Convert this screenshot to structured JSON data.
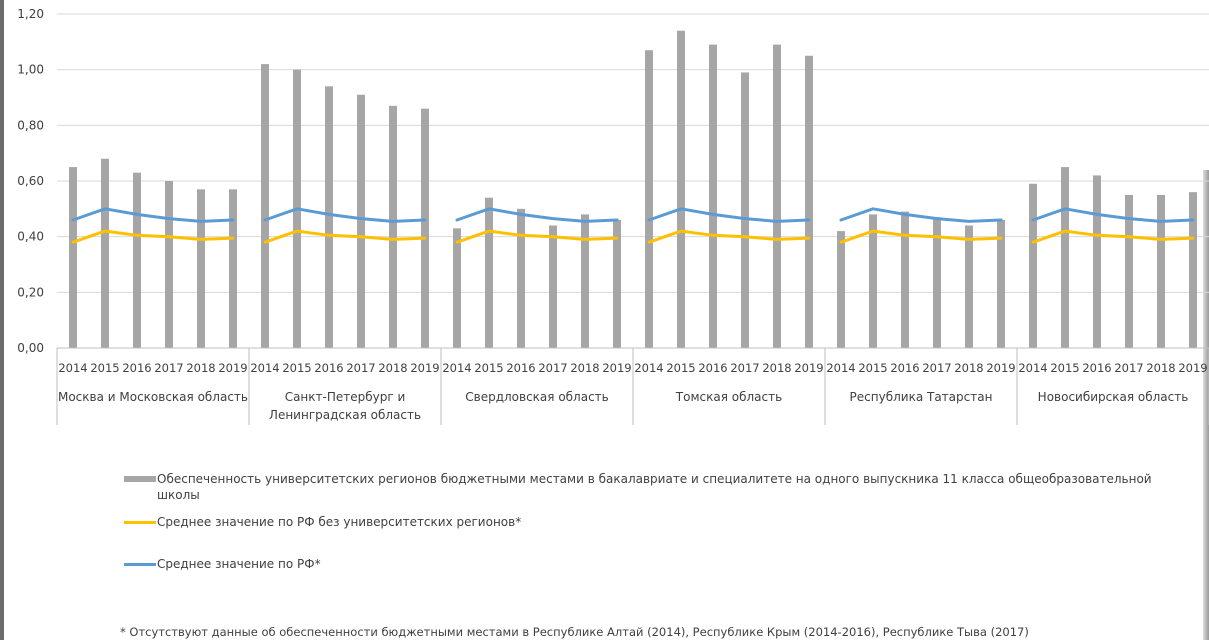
{
  "chart_data": {
    "type": "bar",
    "ylim": [
      0,
      1.2
    ],
    "y_ticks": [
      "0,00",
      "0,20",
      "0,40",
      "0,60",
      "0,80",
      "1,00",
      "1,20"
    ],
    "grid": true,
    "legend_position": "bottom",
    "years": [
      "2014",
      "2015",
      "2016",
      "2017",
      "2018",
      "2019"
    ],
    "groups": [
      {
        "name": "Москва и Московская область",
        "lines": [
          "Москва и Московская область"
        ]
      },
      {
        "name": "Санкт-Петербург и Ленинградская область",
        "lines": [
          "Санкт-Петербург и",
          "Ленинградская область"
        ]
      },
      {
        "name": "Свердловская область",
        "lines": [
          "Свердловская область"
        ]
      },
      {
        "name": "Томская область",
        "lines": [
          "Томская область"
        ]
      },
      {
        "name": "Республика Татарстан",
        "lines": [
          "Республика Татарстан"
        ]
      },
      {
        "name": "Новосибирская область",
        "lines": [
          "Новосибирская область"
        ]
      }
    ],
    "bars": {
      "name": "Обеспеченность университетских регионов бюджетными местами в бакалавриате и специалитете на одного выпускника 11 класса общеобразовательной школы",
      "color": "#a6a6a6",
      "values": [
        [
          0.65,
          0.68,
          0.63,
          0.6,
          0.57,
          0.57
        ],
        [
          1.02,
          1.0,
          0.94,
          0.91,
          0.87,
          0.86
        ],
        [
          0.43,
          0.54,
          0.5,
          0.44,
          0.48,
          0.46
        ],
        [
          1.07,
          1.14,
          1.09,
          0.99,
          1.09,
          1.05
        ],
        [
          0.42,
          0.48,
          0.49,
          0.47,
          0.44,
          0.46
        ],
        [
          0.59,
          0.65,
          0.62,
          0.55,
          0.55,
          0.56
        ]
      ]
    },
    "lines": [
      {
        "name": "Среднее значение по РФ без университетских регионов*",
        "color": "#ffc000",
        "values": [
          0.38,
          0.42,
          0.405,
          0.4,
          0.39,
          0.395
        ]
      },
      {
        "name": "Среднее значение по РФ*",
        "color": "#5b9bd5",
        "values": [
          0.46,
          0.5,
          0.48,
          0.465,
          0.455,
          0.46
        ]
      }
    ]
  },
  "legend": {
    "bars_label": "Обеспеченность университетских регионов бюджетными местами в бакалавриате и специалитете на одного выпускника 11 класса общеобразовательной школы",
    "yellow_label": "Среднее значение по РФ без университетских регионов*",
    "blue_label": "Среднее значение по РФ*"
  },
  "footnote": "* Отсутствуют данные об обеспеченности бюджетными местами в Республике Алтай (2014), Республике Крым (2014-2016), Республике Тыва (2017)"
}
